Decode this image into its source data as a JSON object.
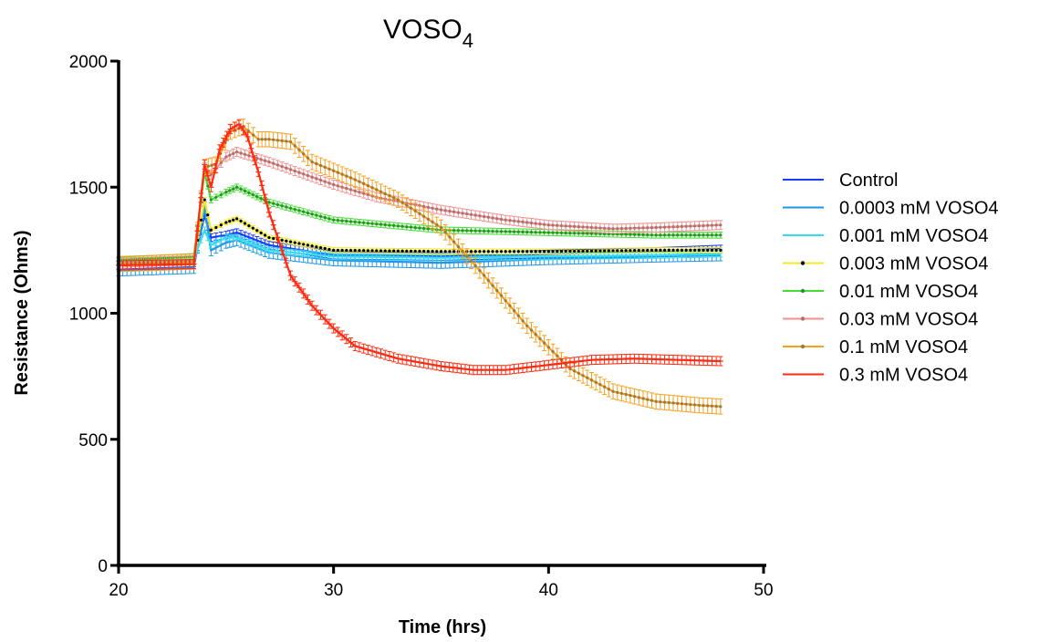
{
  "chart_data": {
    "type": "line",
    "title": "VOSO",
    "title_subscript": "4",
    "xlabel": "Time (hrs)",
    "ylabel": "Resistance (Ohms)",
    "xlim": [
      20,
      50
    ],
    "ylim": [
      0,
      2000
    ],
    "xticks": [
      20,
      30,
      40,
      50
    ],
    "yticks": [
      0,
      500,
      1000,
      1500,
      2000
    ],
    "legend_position": "right",
    "grid": false,
    "error_bars": true,
    "series": [
      {
        "name": "Control",
        "color": "#1a3cff",
        "marker": "none",
        "points": [
          [
            20,
            1190
          ],
          [
            23.5,
            1200
          ],
          [
            24,
            1390
          ],
          [
            24.3,
            1300
          ],
          [
            25,
            1310
          ],
          [
            25.5,
            1320
          ],
          [
            27,
            1270
          ],
          [
            30,
            1230
          ],
          [
            35,
            1225
          ],
          [
            40,
            1235
          ],
          [
            45,
            1245
          ],
          [
            48,
            1255
          ]
        ],
        "err": 15
      },
      {
        "name": "0.0003 mM VOSO4",
        "color": "#2196e8",
        "marker": "none",
        "points": [
          [
            20,
            1170
          ],
          [
            23.5,
            1180
          ],
          [
            24,
            1420
          ],
          [
            24.3,
            1250
          ],
          [
            25,
            1280
          ],
          [
            25.5,
            1290
          ],
          [
            27,
            1240
          ],
          [
            30,
            1210
          ],
          [
            35,
            1200
          ],
          [
            40,
            1215
          ],
          [
            45,
            1225
          ],
          [
            48,
            1230
          ]
        ],
        "err": 22
      },
      {
        "name": "0.001 mM VOSO4",
        "color": "#33ddee",
        "marker": "none",
        "points": [
          [
            20,
            1205
          ],
          [
            23.5,
            1215
          ],
          [
            24,
            1330
          ],
          [
            24.3,
            1270
          ],
          [
            25,
            1300
          ],
          [
            25.5,
            1300
          ],
          [
            27,
            1250
          ],
          [
            30,
            1225
          ],
          [
            35,
            1220
          ],
          [
            40,
            1225
          ],
          [
            45,
            1230
          ],
          [
            48,
            1235
          ]
        ],
        "err": 12
      },
      {
        "name": "0.003 mM VOSO4",
        "color": "#f0e830",
        "marker": "dot",
        "markerColor": "#000000",
        "points": [
          [
            20,
            1200
          ],
          [
            23.5,
            1210
          ],
          [
            24,
            1450
          ],
          [
            24.3,
            1330
          ],
          [
            25,
            1360
          ],
          [
            25.5,
            1375
          ],
          [
            27,
            1300
          ],
          [
            30,
            1250
          ],
          [
            35,
            1245
          ],
          [
            40,
            1245
          ],
          [
            45,
            1250
          ],
          [
            48,
            1250
          ]
        ],
        "err": 10
      },
      {
        "name": "0.01 mM VOSO4",
        "color": "#44dd33",
        "marker": "dot",
        "markerColor": "#2f8f2f",
        "points": [
          [
            20,
            1210
          ],
          [
            23.5,
            1225
          ],
          [
            24,
            1560
          ],
          [
            24.3,
            1450
          ],
          [
            25,
            1480
          ],
          [
            25.5,
            1500
          ],
          [
            27,
            1440
          ],
          [
            30,
            1370
          ],
          [
            35,
            1330
          ],
          [
            40,
            1320
          ],
          [
            45,
            1310
          ],
          [
            48,
            1310
          ]
        ],
        "err": 12
      },
      {
        "name": "0.03 mM VOSO4",
        "color": "#f09090",
        "marker": "dot",
        "markerColor": "#b07070",
        "points": [
          [
            20,
            1200
          ],
          [
            23.5,
            1210
          ],
          [
            24,
            1580
          ],
          [
            24.3,
            1550
          ],
          [
            25,
            1620
          ],
          [
            25.5,
            1640
          ],
          [
            27,
            1600
          ],
          [
            28,
            1570
          ],
          [
            30,
            1510
          ],
          [
            32,
            1460
          ],
          [
            35,
            1410
          ],
          [
            38,
            1370
          ],
          [
            40,
            1350
          ],
          [
            43,
            1335
          ],
          [
            45,
            1340
          ],
          [
            48,
            1350
          ]
        ],
        "err": 18
      },
      {
        "name": "0.1 mM VOSO4",
        "color": "#f5a020",
        "marker": "dot",
        "markerColor": "#9a7a40",
        "points": [
          [
            20,
            1195
          ],
          [
            23.5,
            1205
          ],
          [
            24,
            1580
          ],
          [
            24.5,
            1590
          ],
          [
            25.2,
            1720
          ],
          [
            25.8,
            1740
          ],
          [
            26.5,
            1690
          ],
          [
            27,
            1690
          ],
          [
            28,
            1680
          ],
          [
            29,
            1600
          ],
          [
            31,
            1530
          ],
          [
            33,
            1450
          ],
          [
            35,
            1340
          ],
          [
            37,
            1150
          ],
          [
            39,
            950
          ],
          [
            41,
            780
          ],
          [
            43,
            690
          ],
          [
            45,
            650
          ],
          [
            47,
            635
          ],
          [
            48,
            630
          ]
        ],
        "err": 30
      },
      {
        "name": "0.3 mM VOSO4",
        "color": "#ff2a10",
        "marker": "plus",
        "markerColor": "#ff2a10",
        "points": [
          [
            20,
            1190
          ],
          [
            23.5,
            1195
          ],
          [
            24,
            1590
          ],
          [
            24.3,
            1500
          ],
          [
            24.7,
            1650
          ],
          [
            25.2,
            1730
          ],
          [
            25.6,
            1750
          ],
          [
            26,
            1700
          ],
          [
            26.5,
            1560
          ],
          [
            27,
            1400
          ],
          [
            28,
            1150
          ],
          [
            29,
            1030
          ],
          [
            30,
            940
          ],
          [
            31,
            870
          ],
          [
            33,
            820
          ],
          [
            35,
            790
          ],
          [
            36.5,
            775
          ],
          [
            38,
            775
          ],
          [
            40,
            795
          ],
          [
            42,
            815
          ],
          [
            44,
            820
          ],
          [
            46,
            815
          ],
          [
            48,
            810
          ]
        ],
        "err": 18
      }
    ]
  }
}
